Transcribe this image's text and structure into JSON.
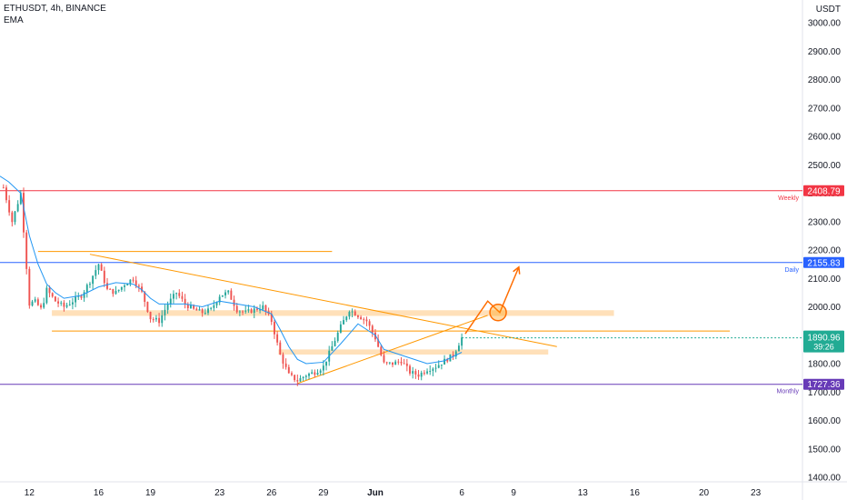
{
  "header": {
    "symbol": "ETHUSDT, 4h, BINANCE",
    "indicator": "EMA"
  },
  "price_axis": {
    "currency": "USDT"
  },
  "colors": {
    "up": "#26a69a",
    "down": "#ef5350",
    "candle_body_down": "#131722",
    "ema": "#2196f3",
    "weekly": "#f23645",
    "daily": "#2962ff",
    "monthly": "#673ab7",
    "trend": "#ff9800",
    "zone": "#ffd8a8",
    "current": "#22ab94",
    "arrow": "#ff6d00"
  },
  "chart_data": {
    "type": "candlestick",
    "title": "",
    "ylabel": "USDT",
    "ylim": [
      1384,
      3080
    ],
    "y_ticks": [
      1400,
      1500,
      1600,
      1700,
      1800,
      1900,
      2000,
      2100,
      2200,
      2300,
      2400,
      2500,
      2600,
      2700,
      2800,
      2900,
      3000
    ],
    "x_ticks": [
      "12",
      "16",
      "19",
      "23",
      "26",
      "29",
      "Jun",
      "6",
      "9",
      "13",
      "16",
      "20",
      "23"
    ],
    "x_tick_days": [
      12,
      16,
      19,
      23,
      26,
      29,
      32,
      37,
      40,
      44,
      47,
      51,
      54
    ],
    "x_start_day": 10.3,
    "x_end_day": 56.7,
    "close_series": [
      [
        "10.5",
        2420
      ],
      [
        "11",
        2300
      ],
      [
        "11.5",
        2400
      ],
      [
        "12",
        2010
      ],
      [
        "12.3",
        2020
      ],
      [
        "12.7",
        1990
      ],
      [
        "13",
        2060
      ],
      [
        "13.5",
        2020
      ],
      [
        "14",
        2000
      ],
      [
        "15",
        2040
      ],
      [
        "15.5",
        2090
      ],
      [
        "16",
        2150
      ],
      [
        "16.5",
        2060
      ],
      [
        "17",
        2050
      ],
      [
        "17.5",
        2080
      ],
      [
        "18",
        2100
      ],
      [
        "18.5",
        2050
      ],
      [
        "19",
        1960
      ],
      [
        "19.5",
        1950
      ],
      [
        "20",
        2010
      ],
      [
        "20.5",
        2050
      ],
      [
        "21",
        2010
      ],
      [
        "21.5",
        1990
      ],
      [
        "22",
        1980
      ],
      [
        "22.5",
        1990
      ],
      [
        "23",
        2040
      ],
      [
        "23.5",
        2050
      ],
      [
        "24",
        1990
      ],
      [
        "24.5",
        1980
      ],
      [
        "25",
        1990
      ],
      [
        "25.5",
        2000
      ],
      [
        "26",
        1950
      ],
      [
        "26.5",
        1830
      ],
      [
        "27",
        1760
      ],
      [
        "27.5",
        1740
      ],
      [
        "28",
        1760
      ],
      [
        "28.5",
        1770
      ],
      [
        "29",
        1790
      ],
      [
        "29.5",
        1860
      ],
      [
        "30",
        1930
      ],
      [
        "30.5",
        1990
      ],
      [
        "31",
        1970
      ],
      [
        "31.5",
        1950
      ],
      [
        "32",
        1890
      ],
      [
        "32.5",
        1800
      ],
      [
        "33",
        1800
      ],
      [
        "33.5",
        1810
      ],
      [
        "34",
        1770
      ],
      [
        "34.5",
        1760
      ],
      [
        "35",
        1780
      ],
      [
        "35.5",
        1790
      ],
      [
        "36",
        1810
      ],
      [
        "36.5",
        1830
      ],
      [
        "37",
        1891
      ]
    ],
    "ema_series": [
      [
        "10.3",
        2460
      ],
      [
        "10.8",
        2440
      ],
      [
        "11.5",
        2400
      ],
      [
        "12",
        2250
      ],
      [
        "12.5",
        2150
      ],
      [
        "13",
        2080
      ],
      [
        "13.5",
        2050
      ],
      [
        "14",
        2030
      ],
      [
        "15",
        2040
      ],
      [
        "16",
        2070
      ],
      [
        "17",
        2085
      ],
      [
        "18",
        2080
      ],
      [
        "18.5",
        2060
      ],
      [
        "19",
        2030
      ],
      [
        "19.5",
        2010
      ],
      [
        "20",
        2010
      ],
      [
        "21",
        2010
      ],
      [
        "22",
        2000
      ],
      [
        "23",
        2020
      ],
      [
        "24",
        2010
      ],
      [
        "25",
        2000
      ],
      [
        "26",
        1975
      ],
      [
        "26.5",
        1920
      ],
      [
        "27",
        1860
      ],
      [
        "27.5",
        1815
      ],
      [
        "28",
        1800
      ],
      [
        "29",
        1805
      ],
      [
        "30",
        1870
      ],
      [
        "31",
        1940
      ],
      [
        "32",
        1900
      ],
      [
        "32.5",
        1850
      ],
      [
        "33",
        1840
      ],
      [
        "34",
        1820
      ],
      [
        "35",
        1800
      ],
      [
        "36",
        1810
      ],
      [
        "37",
        1840
      ]
    ],
    "levels": [
      {
        "label": "Weekly",
        "value": 2408.79,
        "price_label": "2408.79"
      },
      {
        "label": "Daily",
        "value": 2155.83,
        "price_label": "2155.83"
      },
      {
        "label": "Monthly",
        "value": 1727.36,
        "price_label": "1727.36"
      }
    ],
    "current_price": {
      "value": 1890.96,
      "price_label": "1890.96",
      "countdown": "39:26"
    },
    "horizontal_lines": [
      {
        "value": 2195,
        "from_day": 12.5,
        "to_day": 29.5
      },
      {
        "value": 1915,
        "from_day": 13.3,
        "to_day": 52.5
      }
    ],
    "zones": [
      {
        "low": 1968,
        "high": 1988,
        "from_day": 13.3,
        "to_day": 45.8
      },
      {
        "low": 1832,
        "high": 1850,
        "from_day": 26.4,
        "to_day": 42.0
      }
    ],
    "trendlines": [
      {
        "from_day": 15.5,
        "from_value": 2185,
        "to_day": 42.5,
        "to_value": 1860
      },
      {
        "from_day": 27.5,
        "from_value": 1730,
        "to_day": 38.5,
        "to_value": 1970
      }
    ],
    "projection": {
      "points": [
        [
          "37.2",
          1905
        ],
        [
          "38.5",
          2020
        ],
        [
          "39.2",
          1980
        ],
        [
          "40.3",
          2140
        ]
      ],
      "circle_day": 39.1,
      "circle_value": 1980
    }
  }
}
